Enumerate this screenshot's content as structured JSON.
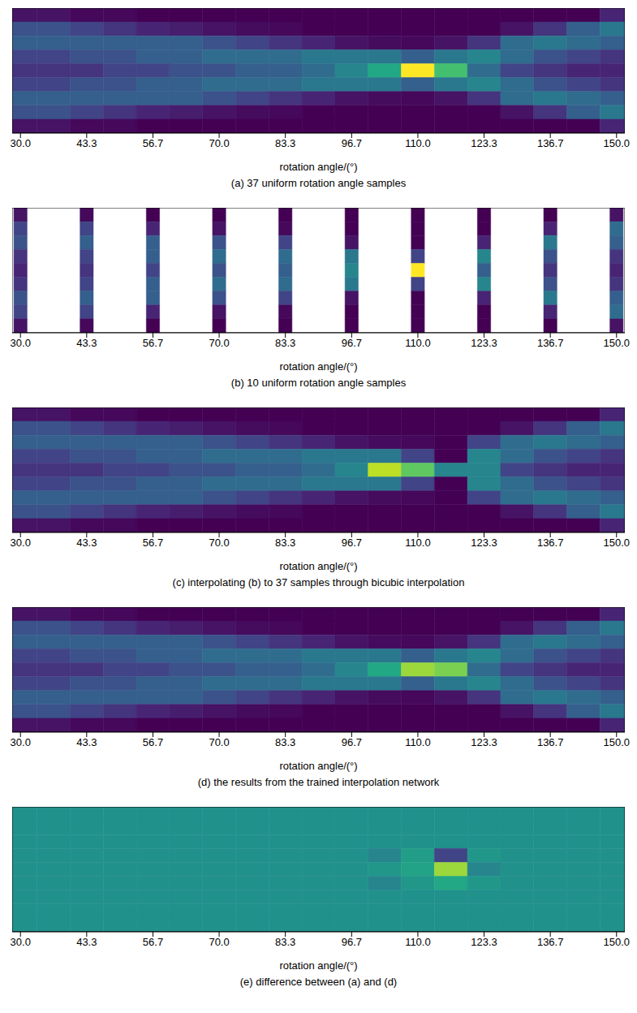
{
  "chart_data": [
    {
      "type": "heatmap",
      "title": "(a) 37 uniform rotation angle samples",
      "x_label": "rotation angle/(°)",
      "xlim": [
        28.33,
        151.67
      ],
      "xticks": [
        {
          "value": 30,
          "label": "30.0"
        },
        {
          "value": 43.33,
          "label": "43.3"
        },
        {
          "value": 56.67,
          "label": "56.7"
        },
        {
          "value": 70,
          "label": "70.0"
        },
        {
          "value": 83.33,
          "label": "83.3"
        },
        {
          "value": 96.67,
          "label": "96.7"
        },
        {
          "value": 110,
          "label": "110.0"
        },
        {
          "value": 123.33,
          "label": "123.3"
        },
        {
          "value": 136.67,
          "label": "136.7"
        },
        {
          "value": 150,
          "label": "150.0"
        }
      ],
      "tick_labels": "x",
      "color_range": [
        0,
        1
      ],
      "x": [
        30,
        36.67,
        43.33,
        50,
        56.67,
        63.33,
        70,
        76.67,
        83.33,
        90,
        96.67,
        103.33,
        110,
        116.67,
        123.33,
        130,
        136.67,
        143.33,
        150
      ],
      "cells": [
        [
          0.05,
          0.25,
          0.3,
          0.2,
          0.15,
          0.2,
          0.3,
          0.25,
          0.05
        ],
        [
          0.05,
          0.25,
          0.3,
          0.2,
          0.15,
          0.2,
          0.3,
          0.25,
          0.05
        ],
        [
          0.02,
          0.2,
          0.3,
          0.25,
          0.15,
          0.25,
          0.3,
          0.2,
          0.02
        ],
        [
          0.02,
          0.15,
          0.3,
          0.25,
          0.2,
          0.25,
          0.3,
          0.15,
          0.02
        ],
        [
          0,
          0.1,
          0.3,
          0.3,
          0.2,
          0.3,
          0.3,
          0.1,
          0
        ],
        [
          0,
          0.08,
          0.3,
          0.3,
          0.25,
          0.3,
          0.3,
          0.08,
          0
        ],
        [
          0,
          0.05,
          0.25,
          0.35,
          0.25,
          0.35,
          0.25,
          0.05,
          0
        ],
        [
          0,
          0.03,
          0.2,
          0.35,
          0.3,
          0.35,
          0.2,
          0.03,
          0
        ],
        [
          0,
          0.02,
          0.15,
          0.35,
          0.3,
          0.35,
          0.15,
          0.02,
          0
        ],
        [
          0,
          0,
          0.1,
          0.4,
          0.35,
          0.4,
          0.1,
          0,
          0
        ],
        [
          0,
          0,
          0.05,
          0.4,
          0.45,
          0.4,
          0.05,
          0,
          0
        ],
        [
          0,
          0,
          0.03,
          0.4,
          0.6,
          0.4,
          0.03,
          0,
          0
        ],
        [
          0,
          0,
          0.02,
          0.3,
          1,
          0.3,
          0.02,
          0,
          0
        ],
        [
          0,
          0,
          0.05,
          0.4,
          0.7,
          0.4,
          0.05,
          0,
          0
        ],
        [
          0,
          0,
          0.15,
          0.45,
          0.35,
          0.45,
          0.15,
          0,
          0
        ],
        [
          0,
          0.05,
          0.35,
          0.35,
          0.2,
          0.35,
          0.35,
          0.05,
          0
        ],
        [
          0,
          0.15,
          0.4,
          0.25,
          0.15,
          0.25,
          0.4,
          0.15,
          0
        ],
        [
          0,
          0.3,
          0.35,
          0.2,
          0.1,
          0.2,
          0.35,
          0.3,
          0
        ],
        [
          0.1,
          0.4,
          0.3,
          0.15,
          0.1,
          0.15,
          0.3,
          0.4,
          0.1
        ]
      ]
    },
    {
      "type": "heatmap",
      "title": "(b) 10 uniform rotation angle samples",
      "x_label": "rotation angle/(°)",
      "xlim": [
        28.33,
        151.67
      ],
      "xticks": [
        {
          "value": 30,
          "label": "30.0"
        },
        {
          "value": 43.33,
          "label": "43.3"
        },
        {
          "value": 56.67,
          "label": "56.7"
        },
        {
          "value": 70,
          "label": "70.0"
        },
        {
          "value": 83.33,
          "label": "83.3"
        },
        {
          "value": 96.67,
          "label": "96.7"
        },
        {
          "value": 110,
          "label": "110.0"
        },
        {
          "value": 123.33,
          "label": "123.3"
        },
        {
          "value": 136.67,
          "label": "136.7"
        },
        {
          "value": 150,
          "label": "150.0"
        }
      ],
      "tick_labels": "x",
      "color_range": [
        0,
        1
      ],
      "x": [
        30,
        43.33,
        56.67,
        70,
        83.33,
        96.67,
        110,
        123.33,
        136.67,
        150
      ],
      "cells": [
        [
          0.05,
          0.2,
          0.25,
          0.15,
          0.1,
          0.15,
          0.25,
          0.2,
          0.05
        ],
        [
          0.02,
          0.2,
          0.3,
          0.2,
          0.15,
          0.2,
          0.3,
          0.2,
          0.02
        ],
        [
          0,
          0.1,
          0.3,
          0.3,
          0.2,
          0.3,
          0.3,
          0.1,
          0
        ],
        [
          0,
          0.05,
          0.25,
          0.35,
          0.25,
          0.35,
          0.25,
          0.05,
          0
        ],
        [
          0,
          0.02,
          0.2,
          0.35,
          0.3,
          0.35,
          0.2,
          0.02,
          0
        ],
        [
          0,
          0,
          0.05,
          0.4,
          0.45,
          0.4,
          0.05,
          0,
          0
        ],
        [
          0,
          0,
          0,
          0.2,
          1,
          0.2,
          0,
          0,
          0
        ],
        [
          0,
          0,
          0.1,
          0.45,
          0.3,
          0.45,
          0.1,
          0,
          0
        ],
        [
          0,
          0.1,
          0.4,
          0.25,
          0.15,
          0.25,
          0.4,
          0.1,
          0
        ],
        [
          0.05,
          0.35,
          0.3,
          0.15,
          0.1,
          0.15,
          0.3,
          0.35,
          0.05
        ]
      ]
    },
    {
      "type": "heatmap",
      "title": "(c) interpolating (b) to 37 samples through bicubic interpolation",
      "x_label": "rotation angle/(°)",
      "xlim": [
        28.33,
        151.67
      ],
      "xticks": [
        {
          "value": 30,
          "label": "30.0"
        },
        {
          "value": 43.33,
          "label": "43.3"
        },
        {
          "value": 56.67,
          "label": "56.7"
        },
        {
          "value": 70,
          "label": "70.0"
        },
        {
          "value": 83.33,
          "label": "83.3"
        },
        {
          "value": 96.67,
          "label": "96.7"
        },
        {
          "value": 110,
          "label": "110.0"
        },
        {
          "value": 123.33,
          "label": "123.3"
        },
        {
          "value": 136.67,
          "label": "136.7"
        },
        {
          "value": 150,
          "label": "150.0"
        }
      ],
      "tick_labels": "x",
      "color_range": [
        0,
        1
      ],
      "x": [
        30,
        36.67,
        43.33,
        50,
        56.67,
        63.33,
        70,
        76.67,
        83.33,
        90,
        96.67,
        103.33,
        110,
        116.67,
        123.33,
        130,
        136.67,
        143.33,
        150
      ],
      "cells": [
        [
          0.05,
          0.25,
          0.3,
          0.2,
          0.15,
          0.2,
          0.3,
          0.25,
          0.05
        ],
        [
          0.05,
          0.25,
          0.3,
          0.2,
          0.15,
          0.2,
          0.3,
          0.25,
          0.05
        ],
        [
          0.02,
          0.2,
          0.3,
          0.25,
          0.15,
          0.25,
          0.3,
          0.2,
          0.02
        ],
        [
          0.02,
          0.15,
          0.3,
          0.25,
          0.2,
          0.25,
          0.3,
          0.15,
          0.02
        ],
        [
          0,
          0.1,
          0.3,
          0.3,
          0.2,
          0.3,
          0.3,
          0.1,
          0
        ],
        [
          0,
          0.08,
          0.3,
          0.3,
          0.25,
          0.3,
          0.3,
          0.08,
          0
        ],
        [
          0,
          0.05,
          0.25,
          0.35,
          0.25,
          0.35,
          0.25,
          0.05,
          0
        ],
        [
          0,
          0.03,
          0.2,
          0.35,
          0.3,
          0.35,
          0.2,
          0.03,
          0
        ],
        [
          0,
          0.02,
          0.15,
          0.35,
          0.3,
          0.35,
          0.15,
          0.02,
          0
        ],
        [
          0,
          0,
          0.1,
          0.4,
          0.35,
          0.4,
          0.1,
          0,
          0
        ],
        [
          0,
          0,
          0.05,
          0.4,
          0.45,
          0.4,
          0.05,
          0,
          0
        ],
        [
          0,
          0,
          0.03,
          0.4,
          0.9,
          0.4,
          0.03,
          0,
          0
        ],
        [
          0,
          0,
          0.02,
          0.2,
          0.75,
          0.2,
          0.02,
          0,
          0
        ],
        [
          0,
          0,
          0,
          0,
          0.45,
          0,
          0,
          0,
          0
        ],
        [
          0,
          0,
          0.2,
          0.45,
          0.45,
          0.45,
          0.2,
          0,
          0
        ],
        [
          0,
          0.05,
          0.35,
          0.35,
          0.2,
          0.35,
          0.35,
          0.05,
          0
        ],
        [
          0,
          0.15,
          0.4,
          0.25,
          0.15,
          0.25,
          0.4,
          0.15,
          0
        ],
        [
          0,
          0.3,
          0.35,
          0.2,
          0.1,
          0.2,
          0.35,
          0.3,
          0
        ],
        [
          0.1,
          0.4,
          0.3,
          0.15,
          0.1,
          0.15,
          0.3,
          0.4,
          0.1
        ]
      ]
    },
    {
      "type": "heatmap",
      "title": "(d) the results from the trained interpolation network",
      "x_label": "rotation angle/(°)",
      "xlim": [
        28.33,
        151.67
      ],
      "xticks": [
        {
          "value": 30,
          "label": "30.0"
        },
        {
          "value": 43.33,
          "label": "43.3"
        },
        {
          "value": 56.67,
          "label": "56.7"
        },
        {
          "value": 70,
          "label": "70.0"
        },
        {
          "value": 83.33,
          "label": "83.3"
        },
        {
          "value": 96.67,
          "label": "96.7"
        },
        {
          "value": 110,
          "label": "110.0"
        },
        {
          "value": 123.33,
          "label": "123.3"
        },
        {
          "value": 136.67,
          "label": "136.7"
        },
        {
          "value": 150,
          "label": "150.0"
        }
      ],
      "tick_labels": "x",
      "color_range": [
        0,
        1
      ],
      "x": [
        30,
        36.67,
        43.33,
        50,
        56.67,
        63.33,
        70,
        76.67,
        83.33,
        90,
        96.67,
        103.33,
        110,
        116.67,
        123.33,
        130,
        136.67,
        143.33,
        150
      ],
      "cells": [
        [
          0.05,
          0.25,
          0.3,
          0.2,
          0.15,
          0.2,
          0.3,
          0.25,
          0.05
        ],
        [
          0.05,
          0.25,
          0.3,
          0.2,
          0.15,
          0.2,
          0.3,
          0.25,
          0.05
        ],
        [
          0.02,
          0.2,
          0.3,
          0.25,
          0.15,
          0.25,
          0.3,
          0.2,
          0.02
        ],
        [
          0.02,
          0.15,
          0.3,
          0.25,
          0.2,
          0.25,
          0.3,
          0.15,
          0.02
        ],
        [
          0,
          0.1,
          0.3,
          0.3,
          0.2,
          0.3,
          0.3,
          0.1,
          0
        ],
        [
          0,
          0.08,
          0.3,
          0.3,
          0.25,
          0.3,
          0.3,
          0.08,
          0
        ],
        [
          0,
          0.05,
          0.25,
          0.35,
          0.25,
          0.35,
          0.25,
          0.05,
          0
        ],
        [
          0,
          0.03,
          0.2,
          0.35,
          0.3,
          0.35,
          0.2,
          0.03,
          0
        ],
        [
          0,
          0.02,
          0.15,
          0.35,
          0.3,
          0.35,
          0.15,
          0.02,
          0
        ],
        [
          0,
          0,
          0.1,
          0.4,
          0.35,
          0.4,
          0.1,
          0,
          0
        ],
        [
          0,
          0,
          0.05,
          0.4,
          0.45,
          0.4,
          0.05,
          0,
          0
        ],
        [
          0,
          0,
          0.03,
          0.4,
          0.6,
          0.4,
          0.03,
          0,
          0
        ],
        [
          0,
          0,
          0.02,
          0.3,
          0.85,
          0.3,
          0.02,
          0,
          0
        ],
        [
          0,
          0,
          0.05,
          0.4,
          0.8,
          0.4,
          0.05,
          0,
          0
        ],
        [
          0,
          0,
          0.15,
          0.45,
          0.35,
          0.45,
          0.15,
          0,
          0
        ],
        [
          0,
          0.05,
          0.35,
          0.35,
          0.2,
          0.35,
          0.35,
          0.05,
          0
        ],
        [
          0,
          0.15,
          0.4,
          0.25,
          0.15,
          0.25,
          0.4,
          0.15,
          0
        ],
        [
          0,
          0.3,
          0.35,
          0.2,
          0.1,
          0.2,
          0.35,
          0.3,
          0
        ],
        [
          0.1,
          0.4,
          0.3,
          0.15,
          0.1,
          0.15,
          0.3,
          0.4,
          0.1
        ]
      ]
    },
    {
      "type": "heatmap",
      "title": "(e) difference between (a) and (d)",
      "x_label": "rotation angle/(°)",
      "xlim": [
        28.33,
        151.67
      ],
      "xticks": [
        {
          "value": 30,
          "label": "30.0"
        },
        {
          "value": 43.33,
          "label": "43.3"
        },
        {
          "value": 56.67,
          "label": "56.7"
        },
        {
          "value": 70,
          "label": "70.0"
        },
        {
          "value": 83.33,
          "label": "83.3"
        },
        {
          "value": 96.67,
          "label": "96.7"
        },
        {
          "value": 110,
          "label": "110.0"
        },
        {
          "value": 123.33,
          "label": "123.3"
        },
        {
          "value": 136.67,
          "label": "136.7"
        },
        {
          "value": 150,
          "label": "150.0"
        }
      ],
      "tick_labels": "x",
      "color_range": [
        -1,
        1
      ],
      "x": [
        30,
        36.67,
        43.33,
        50,
        56.67,
        63.33,
        70,
        76.67,
        83.33,
        90,
        96.67,
        103.33,
        110,
        116.67,
        123.33,
        130,
        136.67,
        143.33,
        150
      ],
      "cells": [
        [
          0,
          0,
          0,
          0,
          0,
          0,
          0,
          0,
          0
        ],
        [
          0,
          0,
          0,
          0,
          0,
          0,
          0,
          0,
          0
        ],
        [
          0,
          0,
          0,
          0,
          0,
          0,
          0,
          0,
          0
        ],
        [
          0,
          0,
          0,
          0,
          0,
          0,
          0,
          0,
          0
        ],
        [
          0,
          0,
          0,
          0,
          0,
          0,
          0,
          0,
          0
        ],
        [
          0,
          0,
          0,
          0,
          0,
          0,
          0,
          0,
          0
        ],
        [
          0,
          0,
          0,
          0,
          0,
          0,
          0,
          0,
          0
        ],
        [
          0,
          0,
          0,
          0,
          0,
          0,
          0,
          0,
          0
        ],
        [
          0,
          0,
          0,
          0,
          0,
          0,
          0,
          0,
          0
        ],
        [
          0,
          0,
          0,
          0,
          0,
          0,
          0,
          0,
          0
        ],
        [
          0,
          0,
          0,
          0,
          0,
          0,
          0,
          0,
          0
        ],
        [
          0,
          0,
          0,
          -0.1,
          0.05,
          -0.1,
          0,
          0,
          0
        ],
        [
          0,
          0,
          0,
          0.1,
          0.15,
          0.05,
          0,
          0,
          0
        ],
        [
          0,
          0,
          0,
          -0.6,
          0.7,
          0.2,
          0,
          0,
          0
        ],
        [
          0,
          0,
          0,
          0.05,
          -0.1,
          0.05,
          0,
          0,
          0
        ],
        [
          0,
          0,
          0,
          0,
          0,
          0,
          0,
          0,
          0
        ],
        [
          0,
          0,
          0,
          0,
          0,
          0,
          0,
          0,
          0
        ],
        [
          0,
          0,
          0,
          0,
          0,
          0,
          0,
          0,
          0
        ],
        [
          0,
          0,
          0,
          0,
          0,
          0,
          0,
          0,
          0
        ]
      ]
    }
  ]
}
